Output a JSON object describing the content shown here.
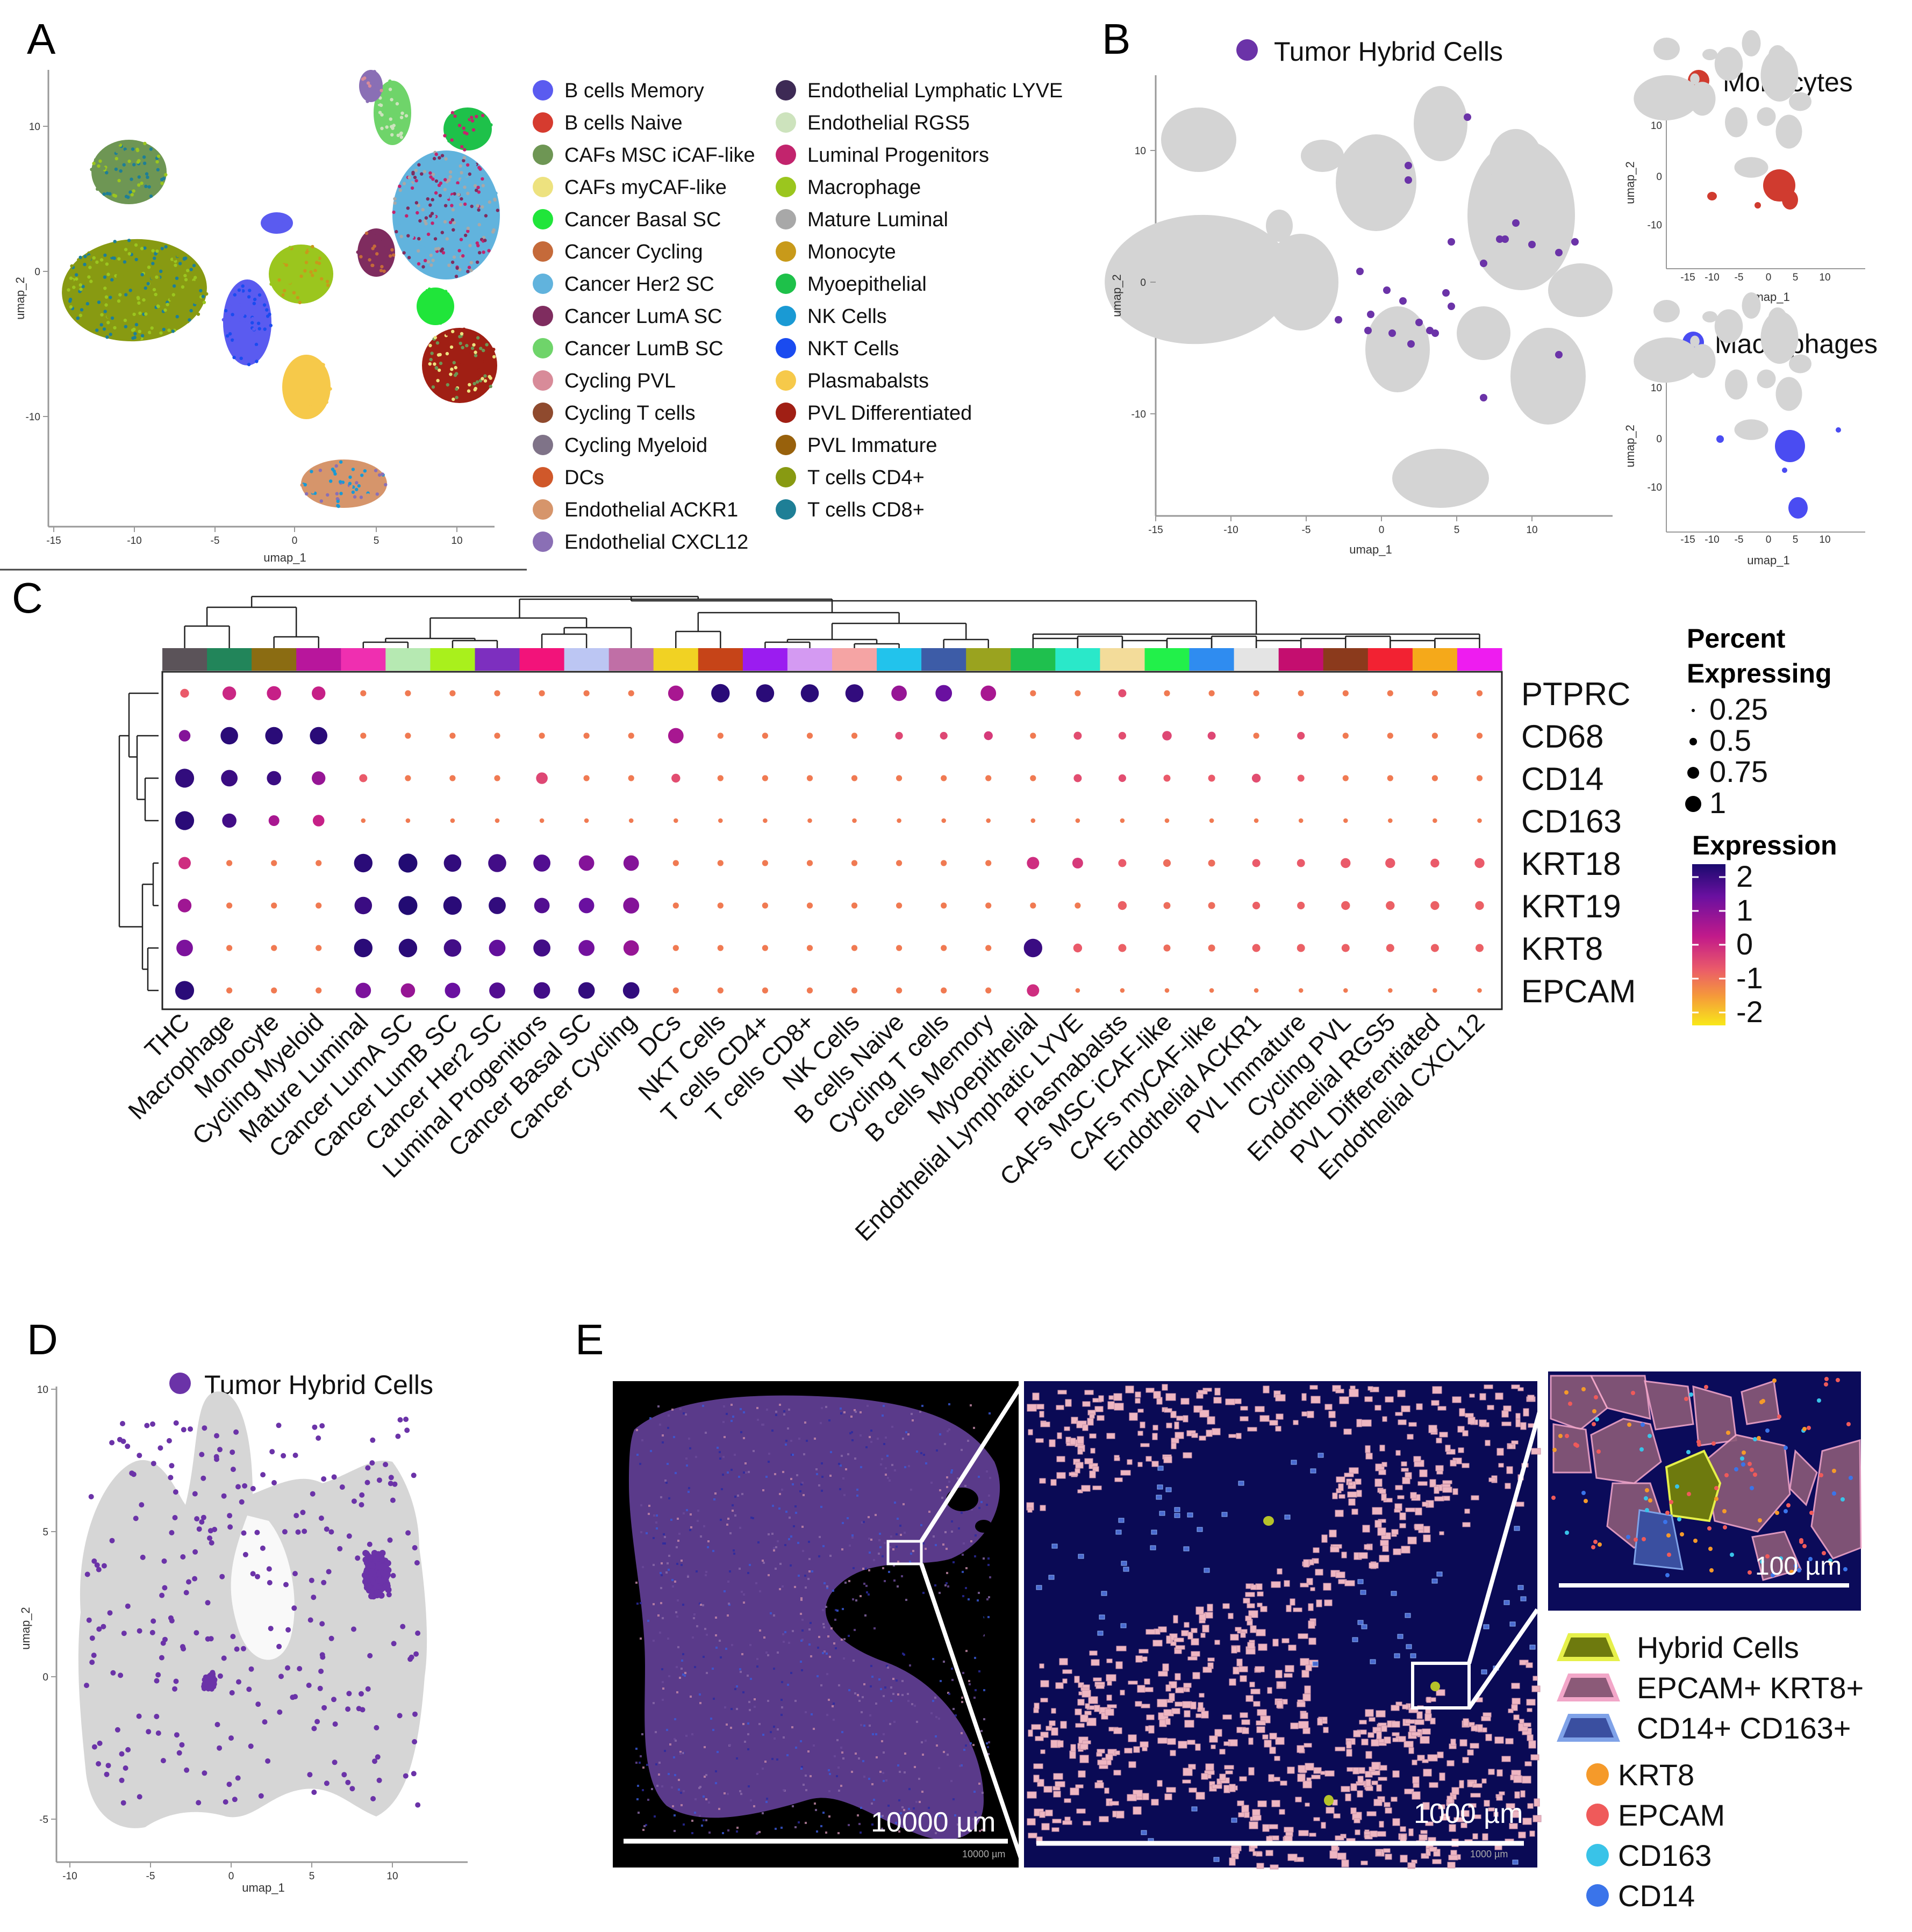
{
  "panels": {
    "a": "A",
    "b": "B",
    "c": "C",
    "d": "D",
    "e": "E"
  },
  "panel_a": {
    "xlabel": "umap_1",
    "ylabel": "umap_2",
    "xticks": [
      "-15",
      "-10",
      "-5",
      "0",
      "5",
      "10"
    ],
    "yticks": [
      "10",
      "0",
      "-10"
    ],
    "legend_col1": [
      {
        "label": "B cells Memory",
        "color": "#5a5bf0"
      },
      {
        "label": "B cells Naive",
        "color": "#d63b2f"
      },
      {
        "label": "CAFs MSC iCAF-like",
        "color": "#6e9654"
      },
      {
        "label": "CAFs myCAF-like",
        "color": "#ede27f"
      },
      {
        "label": "Cancer Basal SC",
        "color": "#20e53a"
      },
      {
        "label": "Cancer Cycling",
        "color": "#c56a3a"
      },
      {
        "label": "Cancer Her2 SC",
        "color": "#61b3dd"
      },
      {
        "label": "Cancer LumA SC",
        "color": "#7f2c5f"
      },
      {
        "label": "Cancer LumB SC",
        "color": "#6fd46a"
      },
      {
        "label": "Cycling PVL",
        "color": "#d88b99"
      },
      {
        "label": "Cycling T cells",
        "color": "#8f4a2e"
      },
      {
        "label": "Cycling Myeloid",
        "color": "#7f7388"
      },
      {
        "label": "DCs",
        "color": "#d0582a"
      },
      {
        "label": "Endothelial ACKR1",
        "color": "#d6956b"
      },
      {
        "label": "Endothelial CXCL12",
        "color": "#8a6fb5"
      }
    ],
    "legend_col2": [
      {
        "label": "Endothelial Lymphatic LYVE",
        "color": "#3d2a55"
      },
      {
        "label": "Endothelial RGS5",
        "color": "#cde3bd"
      },
      {
        "label": "Luminal Progenitors",
        "color": "#c2246d"
      },
      {
        "label": "Macrophage",
        "color": "#9bc61e"
      },
      {
        "label": "Mature Luminal",
        "color": "#a8a8a8"
      },
      {
        "label": "Monocyte",
        "color": "#c89a1a"
      },
      {
        "label": "Myoepithelial",
        "color": "#1ec14a"
      },
      {
        "label": "NK Cells",
        "color": "#1a9ad4"
      },
      {
        "label": "NKT Cells",
        "color": "#1a4bf0"
      },
      {
        "label": "Plasmabalsts",
        "color": "#f6c94a"
      },
      {
        "label": "PVL Differentiated",
        "color": "#a01f14"
      },
      {
        "label": "PVL Immature",
        "color": "#98610c"
      },
      {
        "label": "T cells CD4+",
        "color": "#889a12"
      },
      {
        "label": "T cells CD8+",
        "color": "#1e7f96"
      }
    ]
  },
  "panel_b": {
    "title": "Tumor Hybrid Cells",
    "title_color": "#6b33a8",
    "xlabel": "umap_1",
    "ylabel": "umap_2",
    "xticks": [
      "-15",
      "-10",
      "-5",
      "0",
      "5",
      "10"
    ],
    "yticks": [
      "10",
      "0",
      "-10"
    ],
    "mono": {
      "title": "Monocytes",
      "color": "#d03b2f",
      "xlabel": "umap_1",
      "ylabel": "umap_2",
      "xticks": [
        "-15",
        "-10",
        "-5",
        "0",
        "5",
        "10"
      ],
      "yticks": [
        "10",
        "0",
        "-10"
      ]
    },
    "macro": {
      "title": "Macrophages",
      "color": "#4a4cf2",
      "xlabel": "umap_1",
      "ylabel": "umap_2",
      "xticks": [
        "-15",
        "-10",
        "-5",
        "0",
        "5",
        "10"
      ],
      "yticks": [
        "10",
        "0",
        "-10"
      ]
    }
  },
  "panel_c": {
    "genes": [
      "PTPRC",
      "CD68",
      "CD14",
      "CD163",
      "KRT18",
      "KRT19",
      "KRT8",
      "EPCAM"
    ],
    "cell_types": [
      "THC",
      "Macrophage",
      "Monocyte",
      "Cycling Myeloid",
      "Mature Luminal",
      "Cancer LumA SC",
      "Cancer LumB SC",
      "Cancer Her2 SC",
      "Luminal Progenitors",
      "Cancer Basal SC",
      "Cancer Cycling",
      "DCs",
      "NKT Cells",
      "T cells CD4+",
      "T cells CD8+",
      "NK Cells",
      "B cells Naive",
      "Cycling T cells",
      "B cells Memory",
      "Myoepithelial",
      "Endothelial Lymphatic LYVE",
      "Plasmabalsts",
      "CAFs MSC iCAF-like",
      "CAFs myCAF-like",
      "Endothelial ACKR1",
      "PVL Immature",
      "Cycling PVL",
      "Endothelial RGS5",
      "PVL Differentiated",
      "Endothelial CXCL12"
    ],
    "top_colors": [
      "#5b5359",
      "#22855a",
      "#8b6c12",
      "#b8169c",
      "#ef2fb0",
      "#b6e9b2",
      "#a9f01c",
      "#7d2fbf",
      "#f2137a",
      "#bcc6f3",
      "#c06fa6",
      "#f1d223",
      "#c64418",
      "#9b1cf0",
      "#d49af2",
      "#f5a4a4",
      "#22c3ec",
      "#3d5ca7",
      "#9aa31f",
      "#1fc04e",
      "#2ae8c9",
      "#f3dc9a",
      "#22f04a",
      "#2f8cf0",
      "#e4e4e4",
      "#c40e6f",
      "#8b3a1c",
      "#f22232",
      "#f5a91a",
      "#ee1cf0"
    ],
    "legend": {
      "size_title_1": "Percent",
      "size_title_2": "Expressing",
      "sizes": [
        "0.25",
        "0.5",
        "0.75",
        "1"
      ],
      "color_title": "Expression",
      "color_ticks": [
        "2",
        "1",
        "0",
        "-1",
        "-2"
      ]
    }
  },
  "chart_data": {
    "type": "dotplot",
    "rows": [
      "PTPRC",
      "CD68",
      "CD14",
      "CD163",
      "KRT18",
      "KRT19",
      "KRT8",
      "EPCAM"
    ],
    "columns": [
      "THC",
      "Macrophage",
      "Monocyte",
      "Cycling Myeloid",
      "Mature Luminal",
      "Cancer LumA SC",
      "Cancer LumB SC",
      "Cancer Her2 SC",
      "Luminal Progenitors",
      "Cancer Basal SC",
      "Cancer Cycling",
      "DCs",
      "NKT Cells",
      "T cells CD4+",
      "T cells CD8+",
      "NK Cells",
      "B cells Naive",
      "Cycling T cells",
      "B cells Memory",
      "Myoepithelial",
      "Endothelial Lymphatic LYVE",
      "Plasmabalsts",
      "CAFs MSC iCAF-like",
      "CAFs myCAF-like",
      "Endothelial ACKR1",
      "PVL Immature",
      "Cycling PVL",
      "Endothelial RGS5",
      "PVL Differentiated",
      "Endothelial CXCL12"
    ],
    "percent": [
      [
        0.15,
        0.45,
        0.5,
        0.45,
        0.05,
        0.05,
        0.05,
        0.05,
        0.05,
        0.05,
        0.05,
        0.6,
        0.9,
        0.85,
        0.85,
        0.85,
        0.6,
        0.7,
        0.6,
        0.05,
        0.05,
        0.12,
        0.05,
        0.05,
        0.05,
        0.05,
        0.05,
        0.05,
        0.05,
        0.05
      ],
      [
        0.3,
        0.8,
        0.8,
        0.8,
        0.05,
        0.05,
        0.05,
        0.05,
        0.05,
        0.05,
        0.05,
        0.6,
        0.05,
        0.05,
        0.05,
        0.05,
        0.1,
        0.1,
        0.15,
        0.05,
        0.12,
        0.1,
        0.18,
        0.12,
        0.05,
        0.1,
        0.05,
        0.05,
        0.05,
        0.05
      ],
      [
        0.95,
        0.7,
        0.5,
        0.45,
        0.12,
        0.05,
        0.05,
        0.05,
        0.3,
        0.05,
        0.05,
        0.15,
        0.05,
        0.05,
        0.05,
        0.05,
        0.05,
        0.05,
        0.05,
        0.05,
        0.12,
        0.1,
        0.08,
        0.08,
        0.15,
        0.08,
        0.05,
        0.05,
        0.05,
        0.05
      ],
      [
        0.95,
        0.5,
        0.25,
        0.3,
        0.02,
        0.02,
        0.02,
        0.02,
        0.02,
        0.02,
        0.02,
        0.02,
        0.02,
        0.02,
        0.02,
        0.02,
        0.02,
        0.02,
        0.02,
        0.02,
        0.02,
        0.02,
        0.02,
        0.02,
        0.02,
        0.02,
        0.02,
        0.02,
        0.02,
        0.02
      ],
      [
        0.35,
        0.05,
        0.05,
        0.05,
        0.9,
        0.95,
        0.8,
        0.85,
        0.75,
        0.6,
        0.6,
        0.05,
        0.05,
        0.05,
        0.05,
        0.05,
        0.05,
        0.05,
        0.05,
        0.35,
        0.25,
        0.12,
        0.1,
        0.08,
        0.12,
        0.12,
        0.2,
        0.2,
        0.15,
        0.2
      ],
      [
        0.45,
        0.05,
        0.05,
        0.05,
        0.8,
        0.95,
        0.9,
        0.75,
        0.6,
        0.6,
        0.65,
        0.05,
        0.05,
        0.05,
        0.05,
        0.05,
        0.05,
        0.05,
        0.05,
        0.05,
        0.05,
        0.15,
        0.08,
        0.08,
        0.1,
        0.1,
        0.15,
        0.15,
        0.15,
        0.15
      ],
      [
        0.7,
        0.05,
        0.05,
        0.05,
        0.9,
        0.9,
        0.8,
        0.7,
        0.75,
        0.65,
        0.6,
        0.05,
        0.05,
        0.05,
        0.05,
        0.05,
        0.05,
        0.05,
        0.05,
        0.9,
        0.15,
        0.12,
        0.08,
        0.08,
        0.12,
        0.12,
        0.12,
        0.12,
        0.12,
        0.12
      ],
      [
        0.95,
        0.05,
        0.05,
        0.05,
        0.6,
        0.5,
        0.6,
        0.65,
        0.7,
        0.7,
        0.7,
        0.05,
        0.05,
        0.05,
        0.05,
        0.05,
        0.05,
        0.05,
        0.05,
        0.35,
        0.02,
        0.02,
        0.02,
        0.02,
        0.02,
        0.02,
        0.02,
        0.02,
        0.02,
        0.02
      ]
    ],
    "expression": [
      [
        -0.5,
        0.3,
        0.4,
        0.4,
        -1,
        -1,
        -1,
        -1,
        -1,
        -1,
        -1,
        0.8,
        2.3,
        2.3,
        2.3,
        2.2,
        1,
        1.5,
        0.8,
        -1,
        -1,
        -0.3,
        -1,
        -1,
        -1,
        -1,
        -1,
        -1,
        -1,
        -1
      ],
      [
        1.2,
        2.3,
        2.3,
        2.3,
        -1,
        -1,
        -1,
        -1,
        -1,
        -1,
        -1,
        0.8,
        -1,
        -1,
        -1,
        -1,
        -0.2,
        -0.2,
        0,
        -1,
        -0.3,
        -0.3,
        -0.2,
        -0.2,
        -1,
        -0.3,
        -1,
        -1,
        -1,
        -1
      ],
      [
        2.2,
        2.1,
        2.1,
        1.0,
        -0.5,
        -1,
        -1,
        -1,
        -0.2,
        -1,
        -1,
        -0.3,
        -1,
        -1,
        -1,
        -1,
        -1,
        -1,
        -1,
        -1,
        -0.3,
        -0.3,
        -0.5,
        -0.5,
        -0.3,
        -0.5,
        -1,
        -1,
        -1,
        -1
      ],
      [
        2.3,
        2.0,
        0.8,
        0.4,
        -1,
        -1,
        -1,
        -1,
        -1,
        -1,
        -1,
        -1,
        -1,
        -1,
        -1,
        -1,
        -1,
        -1,
        -1,
        -1,
        -1,
        -1,
        -1,
        -1,
        -1,
        -1,
        -1,
        -1,
        -1,
        -1
      ],
      [
        0.2,
        -1,
        -1,
        -1,
        2.3,
        2.4,
        2.2,
        2.0,
        1.8,
        1.2,
        1.2,
        -1,
        -1,
        -1,
        -1,
        -1,
        -1,
        -1,
        -1,
        0.2,
        0,
        -0.5,
        -0.8,
        -0.8,
        -0.5,
        -0.5,
        -0.5,
        -0.5,
        -0.5,
        -0.5
      ],
      [
        0.9,
        -1,
        -1,
        -1,
        2.1,
        2.4,
        2.3,
        2.2,
        1.8,
        1.5,
        1.2,
        -1,
        -1,
        -1,
        -1,
        -1,
        -1,
        -1,
        -1,
        -1,
        -1,
        -0.6,
        -0.8,
        -0.8,
        -0.6,
        -0.6,
        -0.6,
        -0.6,
        -0.6,
        -0.6
      ],
      [
        1.3,
        -1,
        -1,
        -1,
        2.3,
        2.3,
        2.0,
        1.6,
        2.0,
        1.4,
        1.0,
        -1,
        -1,
        -1,
        -1,
        -1,
        -1,
        -1,
        -1,
        2.1,
        -0.5,
        -0.6,
        -0.8,
        -0.8,
        -0.6,
        -0.6,
        -0.6,
        -0.6,
        -0.6,
        -0.6
      ],
      [
        2.3,
        -1,
        -1,
        -1,
        1.3,
        1.0,
        1.5,
        1.8,
        2.0,
        2.2,
        2.2,
        -1,
        -1,
        -1,
        -1,
        -1,
        -1,
        -1,
        -1,
        0.2,
        -1,
        -1,
        -1,
        -1,
        -1,
        -1,
        -1,
        -1,
        -1,
        -1
      ]
    ],
    "size_legend": [
      "0.25",
      "0.5",
      "0.75",
      "1"
    ],
    "color_range": [
      -2,
      2
    ]
  },
  "panel_d": {
    "title": "Tumor Hybrid Cells",
    "title_color": "#6b33a8",
    "xlabel": "umap_1",
    "ylabel": "umap_2",
    "xticks": [
      "-10",
      "-5",
      "0",
      "5",
      "10"
    ],
    "yticks": [
      "10",
      "5",
      "0",
      "-5"
    ]
  },
  "panel_e": {
    "scale1": "10000 µm",
    "scale1_small": "10000 µm",
    "scale2": "1000 µm",
    "scale2_small": "1000 µm",
    "scale3": "100 µm",
    "legend_polys": [
      {
        "label": "Hybrid Cells",
        "fill": "#6e7a0e",
        "stroke": "#e6f04a"
      },
      {
        "label": "EPCAM+ KRT8+",
        "fill": "#8b5a78",
        "stroke": "#f2a6c8"
      },
      {
        "label": "CD14+ CD163+",
        "fill": "#3a4fa0",
        "stroke": "#7fa2e8"
      }
    ],
    "legend_dots": [
      {
        "label": "KRT8",
        "color": "#f59a2a"
      },
      {
        "label": "EPCAM",
        "color": "#ef5a5a"
      },
      {
        "label": "CD163",
        "color": "#39c3e8"
      },
      {
        "label": "CD14",
        "color": "#3a74ea"
      }
    ]
  }
}
